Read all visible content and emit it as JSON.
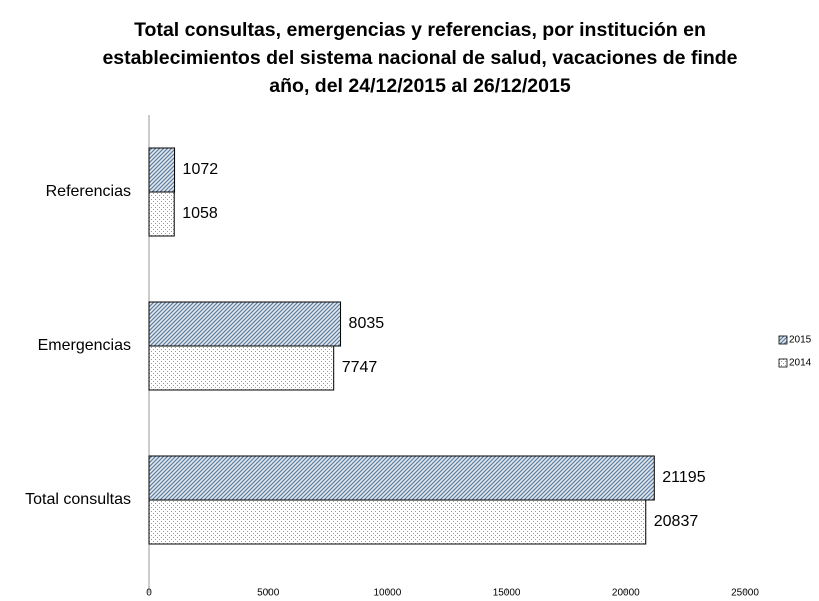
{
  "chart_data": {
    "type": "hbar",
    "title": "Total consultas, emergencias y referencias, por institución en establecimientos del sistema nacional de salud, vacaciones de finde año,  del 24/12/2015 al 26/12/2015",
    "categories": [
      "Referencias",
      "Emergencias",
      "Total consultas"
    ],
    "series": [
      {
        "name": "2015",
        "color": "#5f7f9f",
        "values": [
          1072,
          8035,
          21195
        ]
      },
      {
        "name": "2014",
        "color": "#8a9cad",
        "values": [
          1058,
          7747,
          20837
        ]
      }
    ],
    "xlim": [
      0,
      25000
    ],
    "xticks": [
      0,
      5000,
      10000,
      15000,
      20000,
      25000
    ],
    "grid": false,
    "legend": "right"
  }
}
